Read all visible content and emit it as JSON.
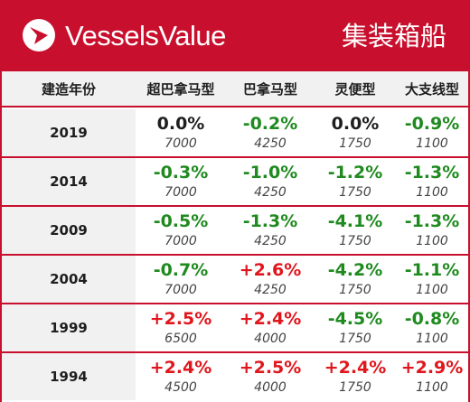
{
  "header": {
    "brand": "VesselsValue",
    "sector": "集装箱船",
    "logo_icon": "vesselsvalue-logo-icon",
    "colors": {
      "brand_red": "#c8102e",
      "header_gray": "#f1f1f1"
    }
  },
  "table": {
    "columns": [
      "建造年份",
      "超巴拿马型",
      "巴拿马型",
      "灵便型",
      "大支线型"
    ],
    "colors": {
      "positive": "#e0161c",
      "negative": "#1f8a1f",
      "neutral": "#1e1e1e"
    },
    "rows": [
      {
        "year": "2019",
        "cells": [
          {
            "change": "0.0%",
            "size": "7000",
            "tone": "neutral"
          },
          {
            "change": "-0.2%",
            "size": "4250",
            "tone": "negative"
          },
          {
            "change": "0.0%",
            "size": "1750",
            "tone": "neutral"
          },
          {
            "change": "-0.9%",
            "size": "1100",
            "tone": "negative"
          }
        ]
      },
      {
        "year": "2014",
        "cells": [
          {
            "change": "-0.3%",
            "size": "7000",
            "tone": "negative"
          },
          {
            "change": "-1.0%",
            "size": "4250",
            "tone": "negative"
          },
          {
            "change": "-1.2%",
            "size": "1750",
            "tone": "negative"
          },
          {
            "change": "-1.3%",
            "size": "1100",
            "tone": "negative"
          }
        ]
      },
      {
        "year": "2009",
        "cells": [
          {
            "change": "-0.5%",
            "size": "7000",
            "tone": "negative"
          },
          {
            "change": "-1.3%",
            "size": "4250",
            "tone": "negative"
          },
          {
            "change": "-4.1%",
            "size": "1750",
            "tone": "negative"
          },
          {
            "change": "-1.3%",
            "size": "1100",
            "tone": "negative"
          }
        ]
      },
      {
        "year": "2004",
        "cells": [
          {
            "change": "-0.7%",
            "size": "7000",
            "tone": "negative"
          },
          {
            "change": "+2.6%",
            "size": "4250",
            "tone": "positive"
          },
          {
            "change": "-4.2%",
            "size": "1750",
            "tone": "negative"
          },
          {
            "change": "-1.1%",
            "size": "1100",
            "tone": "negative"
          }
        ]
      },
      {
        "year": "1999",
        "cells": [
          {
            "change": "+2.5%",
            "size": "6500",
            "tone": "positive"
          },
          {
            "change": "+2.4%",
            "size": "4000",
            "tone": "positive"
          },
          {
            "change": "-4.5%",
            "size": "1750",
            "tone": "negative"
          },
          {
            "change": "-0.8%",
            "size": "1100",
            "tone": "negative"
          }
        ]
      },
      {
        "year": "1994",
        "cells": [
          {
            "change": "+2.4%",
            "size": "4500",
            "tone": "positive"
          },
          {
            "change": "+2.5%",
            "size": "4000",
            "tone": "positive"
          },
          {
            "change": "+2.4%",
            "size": "1750",
            "tone": "positive"
          },
          {
            "change": "+2.9%",
            "size": "1100",
            "tone": "positive"
          }
        ]
      }
    ]
  }
}
